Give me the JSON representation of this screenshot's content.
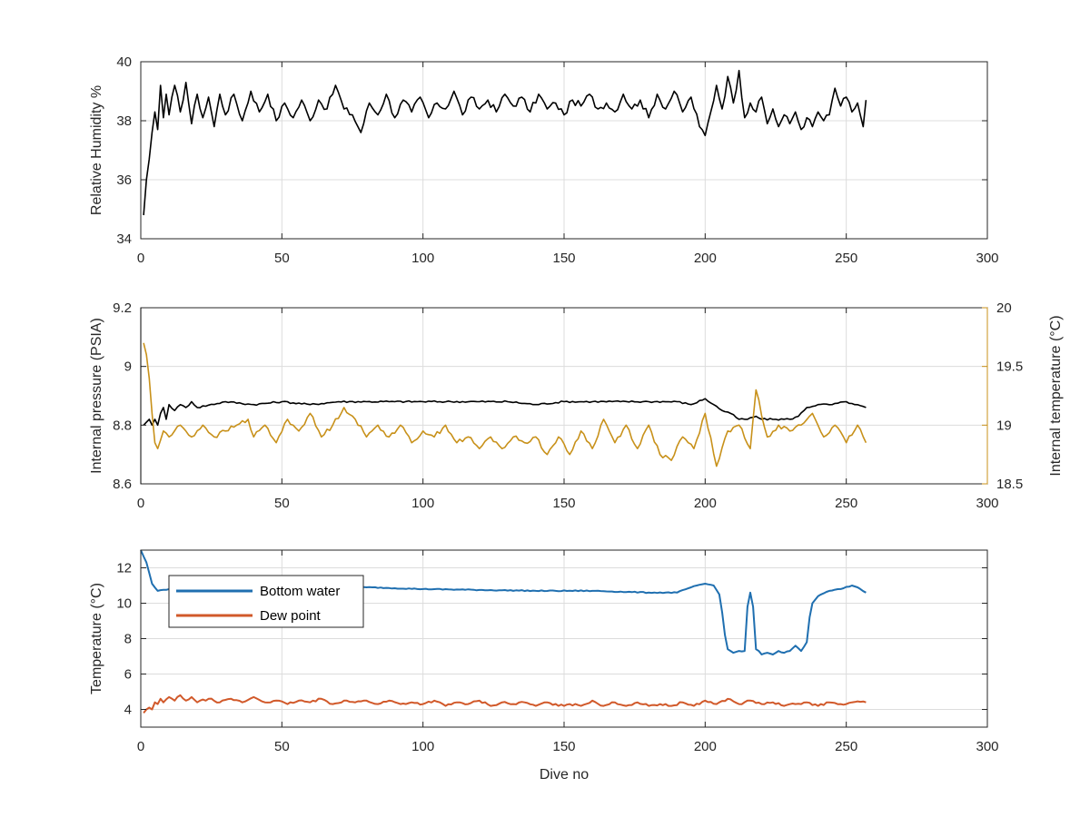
{
  "chart_data": [
    {
      "type": "line",
      "xlabel": "",
      "ylabel": "Relative Humidity %",
      "xlim": [
        0,
        300
      ],
      "ylim": [
        34,
        40
      ],
      "xticks": [
        0,
        50,
        100,
        150,
        200,
        250,
        300
      ],
      "yticks": [
        34,
        36,
        38,
        40
      ],
      "grid": true,
      "series": [
        {
          "name": "",
          "color": "#000000",
          "x": [
            1,
            2,
            3,
            4,
            5,
            6,
            7,
            8,
            9,
            10,
            12,
            14,
            16,
            18,
            20,
            22,
            24,
            26,
            28,
            30,
            33,
            36,
            39,
            42,
            45,
            48,
            51,
            54,
            57,
            60,
            63,
            66,
            69,
            72,
            75,
            78,
            81,
            84,
            87,
            90,
            93,
            96,
            99,
            102,
            105,
            108,
            111,
            114,
            117,
            120,
            123,
            126,
            129,
            132,
            135,
            138,
            141,
            144,
            147,
            150,
            153,
            156,
            159,
            162,
            165,
            168,
            171,
            174,
            177,
            180,
            183,
            186,
            189,
            192,
            195,
            198,
            200,
            202,
            204,
            206,
            208,
            210,
            212,
            214,
            216,
            218,
            220,
            222,
            224,
            226,
            228,
            230,
            232,
            234,
            236,
            238,
            240,
            242,
            244,
            246,
            248,
            250,
            252,
            254,
            256,
            257
          ],
          "y": [
            34.8,
            36,
            36.7,
            37.6,
            38.3,
            37.7,
            39.2,
            38.1,
            38.9,
            38.2,
            39.2,
            38.3,
            39.3,
            37.9,
            38.9,
            38.1,
            38.8,
            37.8,
            38.9,
            38.2,
            38.9,
            38.0,
            39.0,
            38.3,
            38.9,
            38.0,
            38.6,
            38.1,
            38.7,
            38.0,
            38.7,
            38.4,
            39.2,
            38.4,
            38.2,
            37.6,
            38.6,
            38.2,
            38.9,
            38.1,
            38.7,
            38.3,
            38.8,
            38.1,
            38.6,
            38.4,
            39.0,
            38.2,
            38.8,
            38.4,
            38.7,
            38.3,
            38.9,
            38.5,
            38.8,
            38.3,
            38.9,
            38.4,
            38.6,
            38.2,
            38.7,
            38.5,
            38.9,
            38.4,
            38.6,
            38.3,
            38.9,
            38.4,
            38.7,
            38.1,
            38.9,
            38.4,
            39.0,
            38.3,
            38.8,
            37.8,
            37.5,
            38.3,
            39.2,
            38.4,
            39.5,
            38.6,
            39.7,
            38.1,
            38.6,
            38.3,
            38.8,
            37.9,
            38.4,
            37.8,
            38.2,
            37.9,
            38.3,
            37.7,
            38.1,
            37.8,
            38.3,
            38.0,
            38.2,
            39.1,
            38.5,
            38.8,
            38.3,
            38.6,
            37.8,
            38.7
          ],
          "points": "dense"
        }
      ]
    },
    {
      "type": "line",
      "xlabel": "",
      "ylabel": "Internal pressure (PSIA)",
      "ylabel_right": "Internal temperature (°C)",
      "xlim": [
        0,
        300
      ],
      "ylim": [
        8.6,
        9.2
      ],
      "ylim_right": [
        18.5,
        20
      ],
      "xticks": [
        0,
        50,
        100,
        150,
        200,
        250,
        300
      ],
      "yticks": [
        "8.6",
        "8.8",
        "9",
        "9.2"
      ],
      "yticks_right": [
        "18.5",
        "19",
        "19.5",
        "20"
      ],
      "grid": true,
      "series": [
        {
          "name": "",
          "axis": "left",
          "color": "#000000",
          "x": [
            1,
            2,
            3,
            4,
            5,
            6,
            7,
            8,
            9,
            10,
            12,
            14,
            16,
            18,
            20,
            30,
            40,
            50,
            60,
            70,
            80,
            90,
            100,
            110,
            120,
            130,
            140,
            150,
            160,
            170,
            180,
            190,
            195,
            200,
            203,
            206,
            209,
            212,
            215,
            218,
            220,
            225,
            230,
            233,
            236,
            240,
            245,
            250,
            253,
            257
          ],
          "y": [
            8.8,
            8.81,
            8.82,
            8.8,
            8.82,
            8.8,
            8.84,
            8.86,
            8.82,
            8.87,
            8.85,
            8.87,
            8.86,
            8.88,
            8.86,
            8.88,
            8.87,
            8.88,
            8.87,
            8.88,
            8.88,
            8.88,
            8.88,
            8.88,
            8.88,
            8.88,
            8.87,
            8.88,
            8.88,
            8.88,
            8.88,
            8.88,
            8.87,
            8.89,
            8.87,
            8.85,
            8.84,
            8.82,
            8.82,
            8.83,
            8.82,
            8.82,
            8.82,
            8.83,
            8.86,
            8.87,
            8.87,
            8.88,
            8.87,
            8.86
          ],
          "points": "dense"
        },
        {
          "name": "",
          "axis": "right",
          "color": "#C8911A",
          "x": [
            1,
            2,
            3,
            4,
            5,
            6,
            8,
            10,
            14,
            18,
            22,
            26,
            30,
            34,
            38,
            40,
            44,
            48,
            52,
            56,
            60,
            64,
            68,
            72,
            76,
            80,
            84,
            88,
            92,
            96,
            100,
            104,
            108,
            112,
            116,
            120,
            124,
            128,
            132,
            136,
            140,
            144,
            148,
            152,
            156,
            160,
            164,
            168,
            172,
            176,
            180,
            184,
            188,
            192,
            196,
            200,
            204,
            208,
            212,
            216,
            218,
            222,
            226,
            230,
            234,
            238,
            242,
            246,
            250,
            254,
            257
          ],
          "y": [
            19.7,
            19.6,
            19.4,
            19.1,
            18.85,
            18.8,
            18.95,
            18.9,
            19.0,
            18.9,
            19.0,
            18.9,
            18.95,
            19.0,
            19.05,
            18.9,
            19.0,
            18.85,
            19.05,
            18.95,
            19.1,
            18.9,
            19.0,
            19.15,
            19.05,
            18.9,
            19.0,
            18.9,
            19.0,
            18.85,
            18.95,
            18.9,
            19.0,
            18.85,
            18.9,
            18.8,
            18.9,
            18.8,
            18.9,
            18.85,
            18.9,
            18.75,
            18.9,
            18.75,
            18.95,
            18.8,
            19.05,
            18.85,
            19.0,
            18.8,
            19.0,
            18.75,
            18.7,
            18.9,
            18.8,
            19.1,
            18.65,
            18.95,
            19.0,
            18.8,
            19.3,
            18.9,
            19.0,
            18.95,
            19.0,
            19.1,
            18.9,
            19.0,
            18.85,
            19.0,
            18.85
          ],
          "points": "dense"
        }
      ]
    },
    {
      "type": "line",
      "xlabel": "Dive no",
      "ylabel": "Temperature (°C)",
      "xlim": [
        0,
        300
      ],
      "ylim": [
        3,
        13
      ],
      "xticks": [
        0,
        50,
        100,
        150,
        200,
        250,
        300
      ],
      "yticks": [
        4,
        6,
        8,
        10,
        12
      ],
      "grid": true,
      "legend": "top-left",
      "series": [
        {
          "name": "Bottom water",
          "color": "#1F6FB0",
          "x": [
            0,
            2,
            4,
            6,
            10,
            20,
            40,
            60,
            80,
            100,
            120,
            140,
            160,
            180,
            190,
            195,
            200,
            203,
            205,
            206,
            207,
            208,
            209,
            210,
            212,
            214,
            215,
            216,
            217,
            218,
            219,
            220,
            222,
            224,
            226,
            228,
            230,
            232,
            234,
            236,
            237,
            238,
            240,
            244,
            248,
            252,
            254,
            257
          ],
          "y": [
            13,
            12.3,
            11.1,
            10.7,
            10.8,
            10.9,
            10.9,
            10.9,
            10.9,
            10.8,
            10.75,
            10.7,
            10.7,
            10.6,
            10.6,
            10.9,
            11.1,
            11.0,
            10.5,
            9.5,
            8.2,
            7.4,
            7.3,
            7.2,
            7.3,
            7.3,
            9.8,
            10.6,
            9.8,
            7.4,
            7.3,
            7.1,
            7.2,
            7.1,
            7.3,
            7.2,
            7.3,
            7.6,
            7.3,
            7.8,
            9.2,
            10.0,
            10.4,
            10.7,
            10.8,
            11.0,
            10.9,
            10.6
          ],
          "points": "dense"
        },
        {
          "name": "Dew point",
          "color": "#D1592A",
          "x": [
            1,
            2,
            3,
            4,
            5,
            6,
            7,
            8,
            10,
            12,
            14,
            16,
            18,
            20,
            24,
            28,
            32,
            36,
            40,
            44,
            48,
            52,
            56,
            60,
            64,
            68,
            72,
            76,
            80,
            84,
            88,
            92,
            96,
            100,
            104,
            108,
            112,
            116,
            120,
            124,
            128,
            132,
            136,
            140,
            144,
            148,
            152,
            156,
            160,
            164,
            168,
            172,
            176,
            180,
            184,
            188,
            192,
            196,
            200,
            204,
            208,
            212,
            216,
            220,
            224,
            228,
            232,
            236,
            240,
            244,
            248,
            252,
            257
          ],
          "y": [
            3.8,
            4.0,
            4.1,
            4.0,
            4.4,
            4.3,
            4.6,
            4.4,
            4.7,
            4.5,
            4.8,
            4.5,
            4.7,
            4.4,
            4.6,
            4.4,
            4.6,
            4.4,
            4.7,
            4.4,
            4.5,
            4.3,
            4.5,
            4.4,
            4.6,
            4.3,
            4.5,
            4.4,
            4.5,
            4.3,
            4.5,
            4.3,
            4.4,
            4.3,
            4.5,
            4.2,
            4.4,
            4.3,
            4.5,
            4.2,
            4.4,
            4.3,
            4.4,
            4.2,
            4.4,
            4.2,
            4.3,
            4.2,
            4.5,
            4.2,
            4.4,
            4.2,
            4.4,
            4.2,
            4.3,
            4.2,
            4.4,
            4.2,
            4.5,
            4.3,
            4.6,
            4.3,
            4.5,
            4.3,
            4.4,
            4.2,
            4.3,
            4.4,
            4.2,
            4.4,
            4.3,
            4.4,
            4.4
          ],
          "points": "dense"
        }
      ]
    }
  ]
}
